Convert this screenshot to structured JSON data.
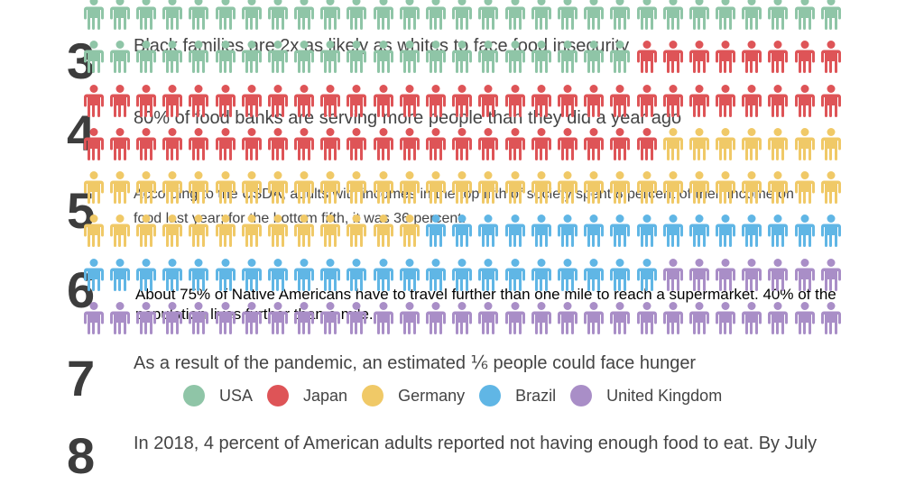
{
  "list": {
    "items": [
      {
        "num": "3",
        "text": "Black families are 2x as likely as whites to face food insecurity"
      },
      {
        "num": "4",
        "text": "80% of food banks are serving more people than they did a year ago"
      },
      {
        "num": "5",
        "text": "According to the USDA, adults with incomes in the top fifth of society spent 8 percent of their income on food last year; for the bottom fifth, it was 36 percent."
      },
      {
        "num": "6",
        "text": "About 75% of Native Americans have to travel further than one mile to reach a supermarket. 40% of the population lives further than a mile."
      },
      {
        "num": "7",
        "text": "As a result of the pandemic, an estimated ⅙ people could face hunger"
      },
      {
        "num": "8",
        "text": "In 2018, 4 percent of American adults reported not having enough food to eat. By July"
      }
    ]
  },
  "legend": [
    {
      "label": "USA",
      "color": "#8fc5a7"
    },
    {
      "label": "Japan",
      "color": "#de5457"
    },
    {
      "label": "Germany",
      "color": "#f0c967"
    },
    {
      "label": "Brazil",
      "color": "#60b6e5"
    },
    {
      "label": "United Kingdom",
      "color": "#a98ec7"
    }
  ],
  "chart_data": {
    "type": "pictogram",
    "title": "",
    "icon": "person-icon",
    "grid": {
      "rows": 8,
      "columns": 29
    },
    "categories": [
      "USA",
      "Japan",
      "Germany",
      "Brazil",
      "United Kingdom"
    ],
    "values": [
      50,
      59,
      49,
      38,
      36
    ],
    "colors": [
      "#8fc5a7",
      "#de5457",
      "#f0c967",
      "#60b6e5",
      "#a98ec7"
    ],
    "legend_position": "bottom",
    "fill_order": "row-major, left-to-right"
  }
}
